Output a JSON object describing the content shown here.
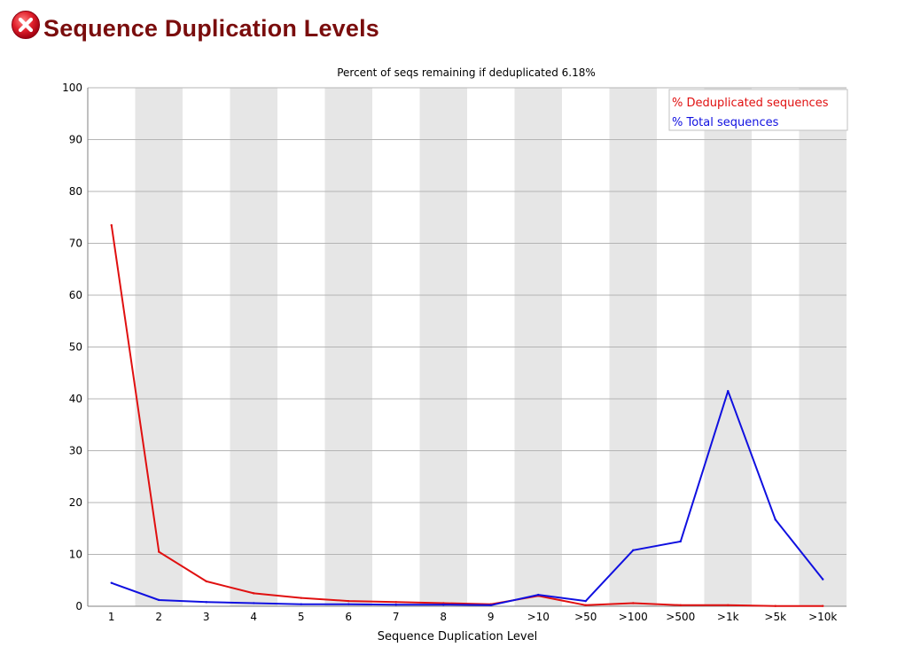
{
  "header": {
    "title": "Sequence Duplication Levels",
    "status_icon": "error-icon"
  },
  "colors": {
    "title": "#7a0d0d",
    "status_fail": "#d2142c",
    "dedup_series": "#e01010",
    "total_series": "#1010e0",
    "band": "#e6e6e6",
    "grid": "#b4b4b4"
  },
  "chart_data": {
    "type": "line",
    "title": "Percent of seqs remaining if deduplicated 6.18%",
    "xlabel": "Sequence Duplication Level",
    "ylabel": "",
    "ylim": [
      0,
      100
    ],
    "yticks": [
      "0",
      "10",
      "20",
      "30",
      "40",
      "50",
      "60",
      "70",
      "80",
      "90",
      "100"
    ],
    "categories": [
      "1",
      "2",
      "3",
      "4",
      "5",
      "6",
      "7",
      "8",
      "9",
      ">10",
      ">50",
      ">100",
      ">500",
      ">1k",
      ">5k",
      ">10k"
    ],
    "grid": true,
    "alternating_bands": true,
    "legend_position": "top-right",
    "series": [
      {
        "name": "% Deduplicated sequences",
        "color": "#e01010",
        "values": [
          73.5,
          10.5,
          4.8,
          2.5,
          1.6,
          1.0,
          0.8,
          0.6,
          0.4,
          2.0,
          0.2,
          0.6,
          0.2,
          0.2,
          0.05,
          0.05
        ]
      },
      {
        "name": "% Total sequences",
        "color": "#1010e0",
        "values": [
          4.5,
          1.2,
          0.8,
          0.6,
          0.4,
          0.4,
          0.3,
          0.3,
          0.2,
          2.2,
          1.0,
          10.8,
          12.5,
          41.5,
          16.7,
          5.2
        ]
      }
    ]
  }
}
